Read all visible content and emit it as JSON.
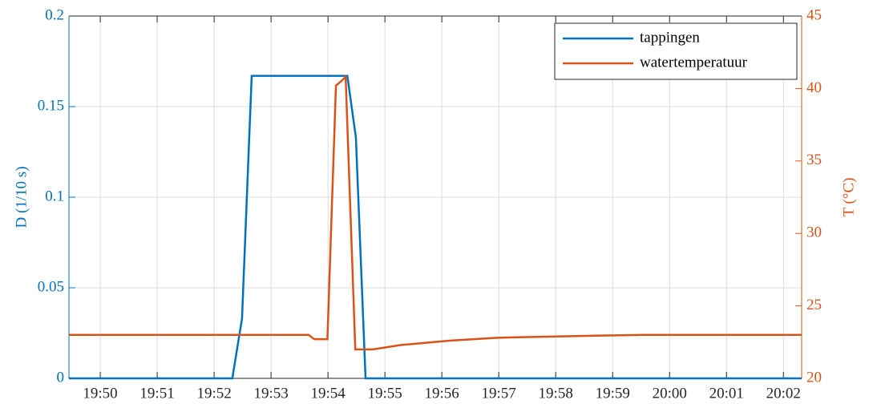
{
  "chart_data": {
    "type": "line",
    "xlim": [
      1189.45,
      1202.32
    ],
    "xticks": [
      {
        "value": 1190,
        "label": "19:50"
      },
      {
        "value": 1191,
        "label": "19:51"
      },
      {
        "value": 1192,
        "label": "19:52"
      },
      {
        "value": 1193,
        "label": "19:53"
      },
      {
        "value": 1194,
        "label": "19:54"
      },
      {
        "value": 1195,
        "label": "19:55"
      },
      {
        "value": 1196,
        "label": "19:56"
      },
      {
        "value": 1197,
        "label": "19:57"
      },
      {
        "value": 1198,
        "label": "19:58"
      },
      {
        "value": 1199,
        "label": "19:59"
      },
      {
        "value": 1200,
        "label": "20:00"
      },
      {
        "value": 1201,
        "label": "20:01"
      },
      {
        "value": 1202,
        "label": "20:02"
      }
    ],
    "ylabel": "D (1/10 s)",
    "ylim": [
      0,
      0.2
    ],
    "yticks": [
      0,
      0.05,
      0.1,
      0.15,
      0.2
    ],
    "y2label": "T (°C)",
    "y2lim": [
      20,
      45
    ],
    "y2ticks": [
      20,
      25,
      30,
      35,
      40,
      45
    ],
    "grid": true,
    "legend": "northeast",
    "series": [
      {
        "name": "tappingen",
        "color": "#0072BD",
        "axis": "y",
        "x": [
          1189.45,
          1192.32,
          1192.49,
          1192.66,
          1194.34,
          1194.49,
          1194.66,
          1202.32
        ],
        "values": [
          0,
          0,
          0.033,
          0.167,
          0.167,
          0.133,
          0,
          0
        ]
      },
      {
        "name": "watertemperatuur",
        "color": "#D95319",
        "axis": "y2",
        "x": [
          1189.45,
          1193.66,
          1193.76,
          1193.99,
          1194.14,
          1194.23,
          1194.31,
          1194.48,
          1194.79,
          1195.28,
          1196.13,
          1196.97,
          1198.1,
          1199.51,
          1202.32
        ],
        "values": [
          23,
          23,
          22.7,
          22.7,
          40.2,
          40.5,
          40.8,
          22,
          22,
          22.3,
          22.6,
          22.8,
          22.9,
          23,
          23
        ]
      }
    ]
  }
}
